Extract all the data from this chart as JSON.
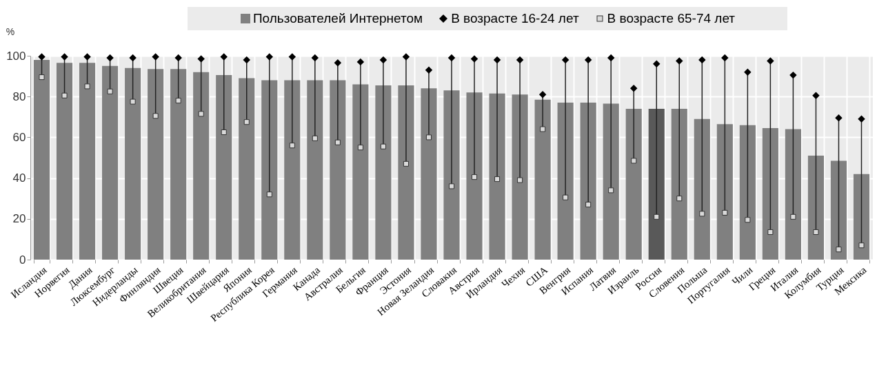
{
  "chart_data": {
    "type": "bar",
    "ylabel": "%",
    "legend": "top",
    "grid": true,
    "ylim": [
      0,
      100
    ],
    "yticks": [
      0,
      20,
      40,
      60,
      80,
      100
    ],
    "categories": [
      "Исландия",
      "Норвегия",
      "Дания",
      "Люксембург",
      "Нидерланды",
      "Финляндия",
      "Швеция",
      "Великобритания",
      "Швейцария",
      "Япония",
      "Республика Корея",
      "Германия",
      "Канада",
      "Австралия",
      "Бельгия",
      "Франция",
      "Эстония",
      "Новая Зеландия",
      "Словакия",
      "Австрия",
      "Ирландия",
      "Чехия",
      "США",
      "Венгрия",
      "Испания",
      "Латвия",
      "Израиль",
      "Россия",
      "Словения",
      "Польша",
      "Португалия",
      "Чили",
      "Греция",
      "Италия",
      "Колумбия",
      "Турция",
      "Мексика"
    ],
    "series": [
      {
        "name": "Пользователей Интернетом",
        "color": "#808080",
        "colors": [
          "#808080",
          "#808080",
          "#808080",
          "#808080",
          "#808080",
          "#808080",
          "#808080",
          "#808080",
          "#808080",
          "#808080",
          "#808080",
          "#808080",
          "#808080",
          "#808080",
          "#808080",
          "#808080",
          "#808080",
          "#808080",
          "#808080",
          "#808080",
          "#808080",
          "#808080",
          "#808080",
          "#808080",
          "#808080",
          "#808080",
          "#808080",
          "#595959",
          "#808080",
          "#808080",
          "#808080",
          "#808080",
          "#808080",
          "#808080",
          "#808080",
          "#808080",
          "#808080"
        ],
        "values": [
          98,
          96.5,
          96.5,
          95,
          94,
          93.5,
          93.5,
          92,
          90.5,
          89,
          88,
          88,
          88,
          88,
          86,
          85.5,
          85.5,
          84,
          83,
          82,
          81.5,
          81,
          78.5,
          77,
          77,
          76.5,
          74,
          74,
          74,
          69,
          66.5,
          66,
          64.5,
          64,
          51,
          48.5,
          42
        ]
      },
      {
        "name": "В возрасте 16-24 лет",
        "type": "scatter",
        "marker": "diamond",
        "color": "#000000",
        "values": [
          99.5,
          99.5,
          99.5,
          99,
          99,
          99.5,
          99,
          98.5,
          99.5,
          98,
          99.5,
          99.5,
          99,
          96.5,
          97,
          98,
          99.5,
          93,
          99,
          98.5,
          98,
          98,
          81,
          98,
          98,
          99,
          84,
          96,
          97.5,
          98,
          99,
          92,
          97.5,
          90.5,
          80.5,
          69.5,
          69
        ]
      },
      {
        "name": "В возрасте 65-74 лет",
        "type": "scatter",
        "marker": "square",
        "color": "#d9d9d9",
        "values": [
          89.5,
          80.5,
          85,
          82.5,
          77.5,
          70.5,
          78,
          71.5,
          62.5,
          67.5,
          32,
          56,
          59.5,
          57.5,
          55,
          55.5,
          47,
          60,
          36,
          40.5,
          39.5,
          39,
          64,
          30.5,
          27,
          34,
          48.5,
          21,
          30,
          22.5,
          23,
          19.5,
          13.5,
          21,
          13.5,
          5,
          7
        ]
      }
    ]
  }
}
